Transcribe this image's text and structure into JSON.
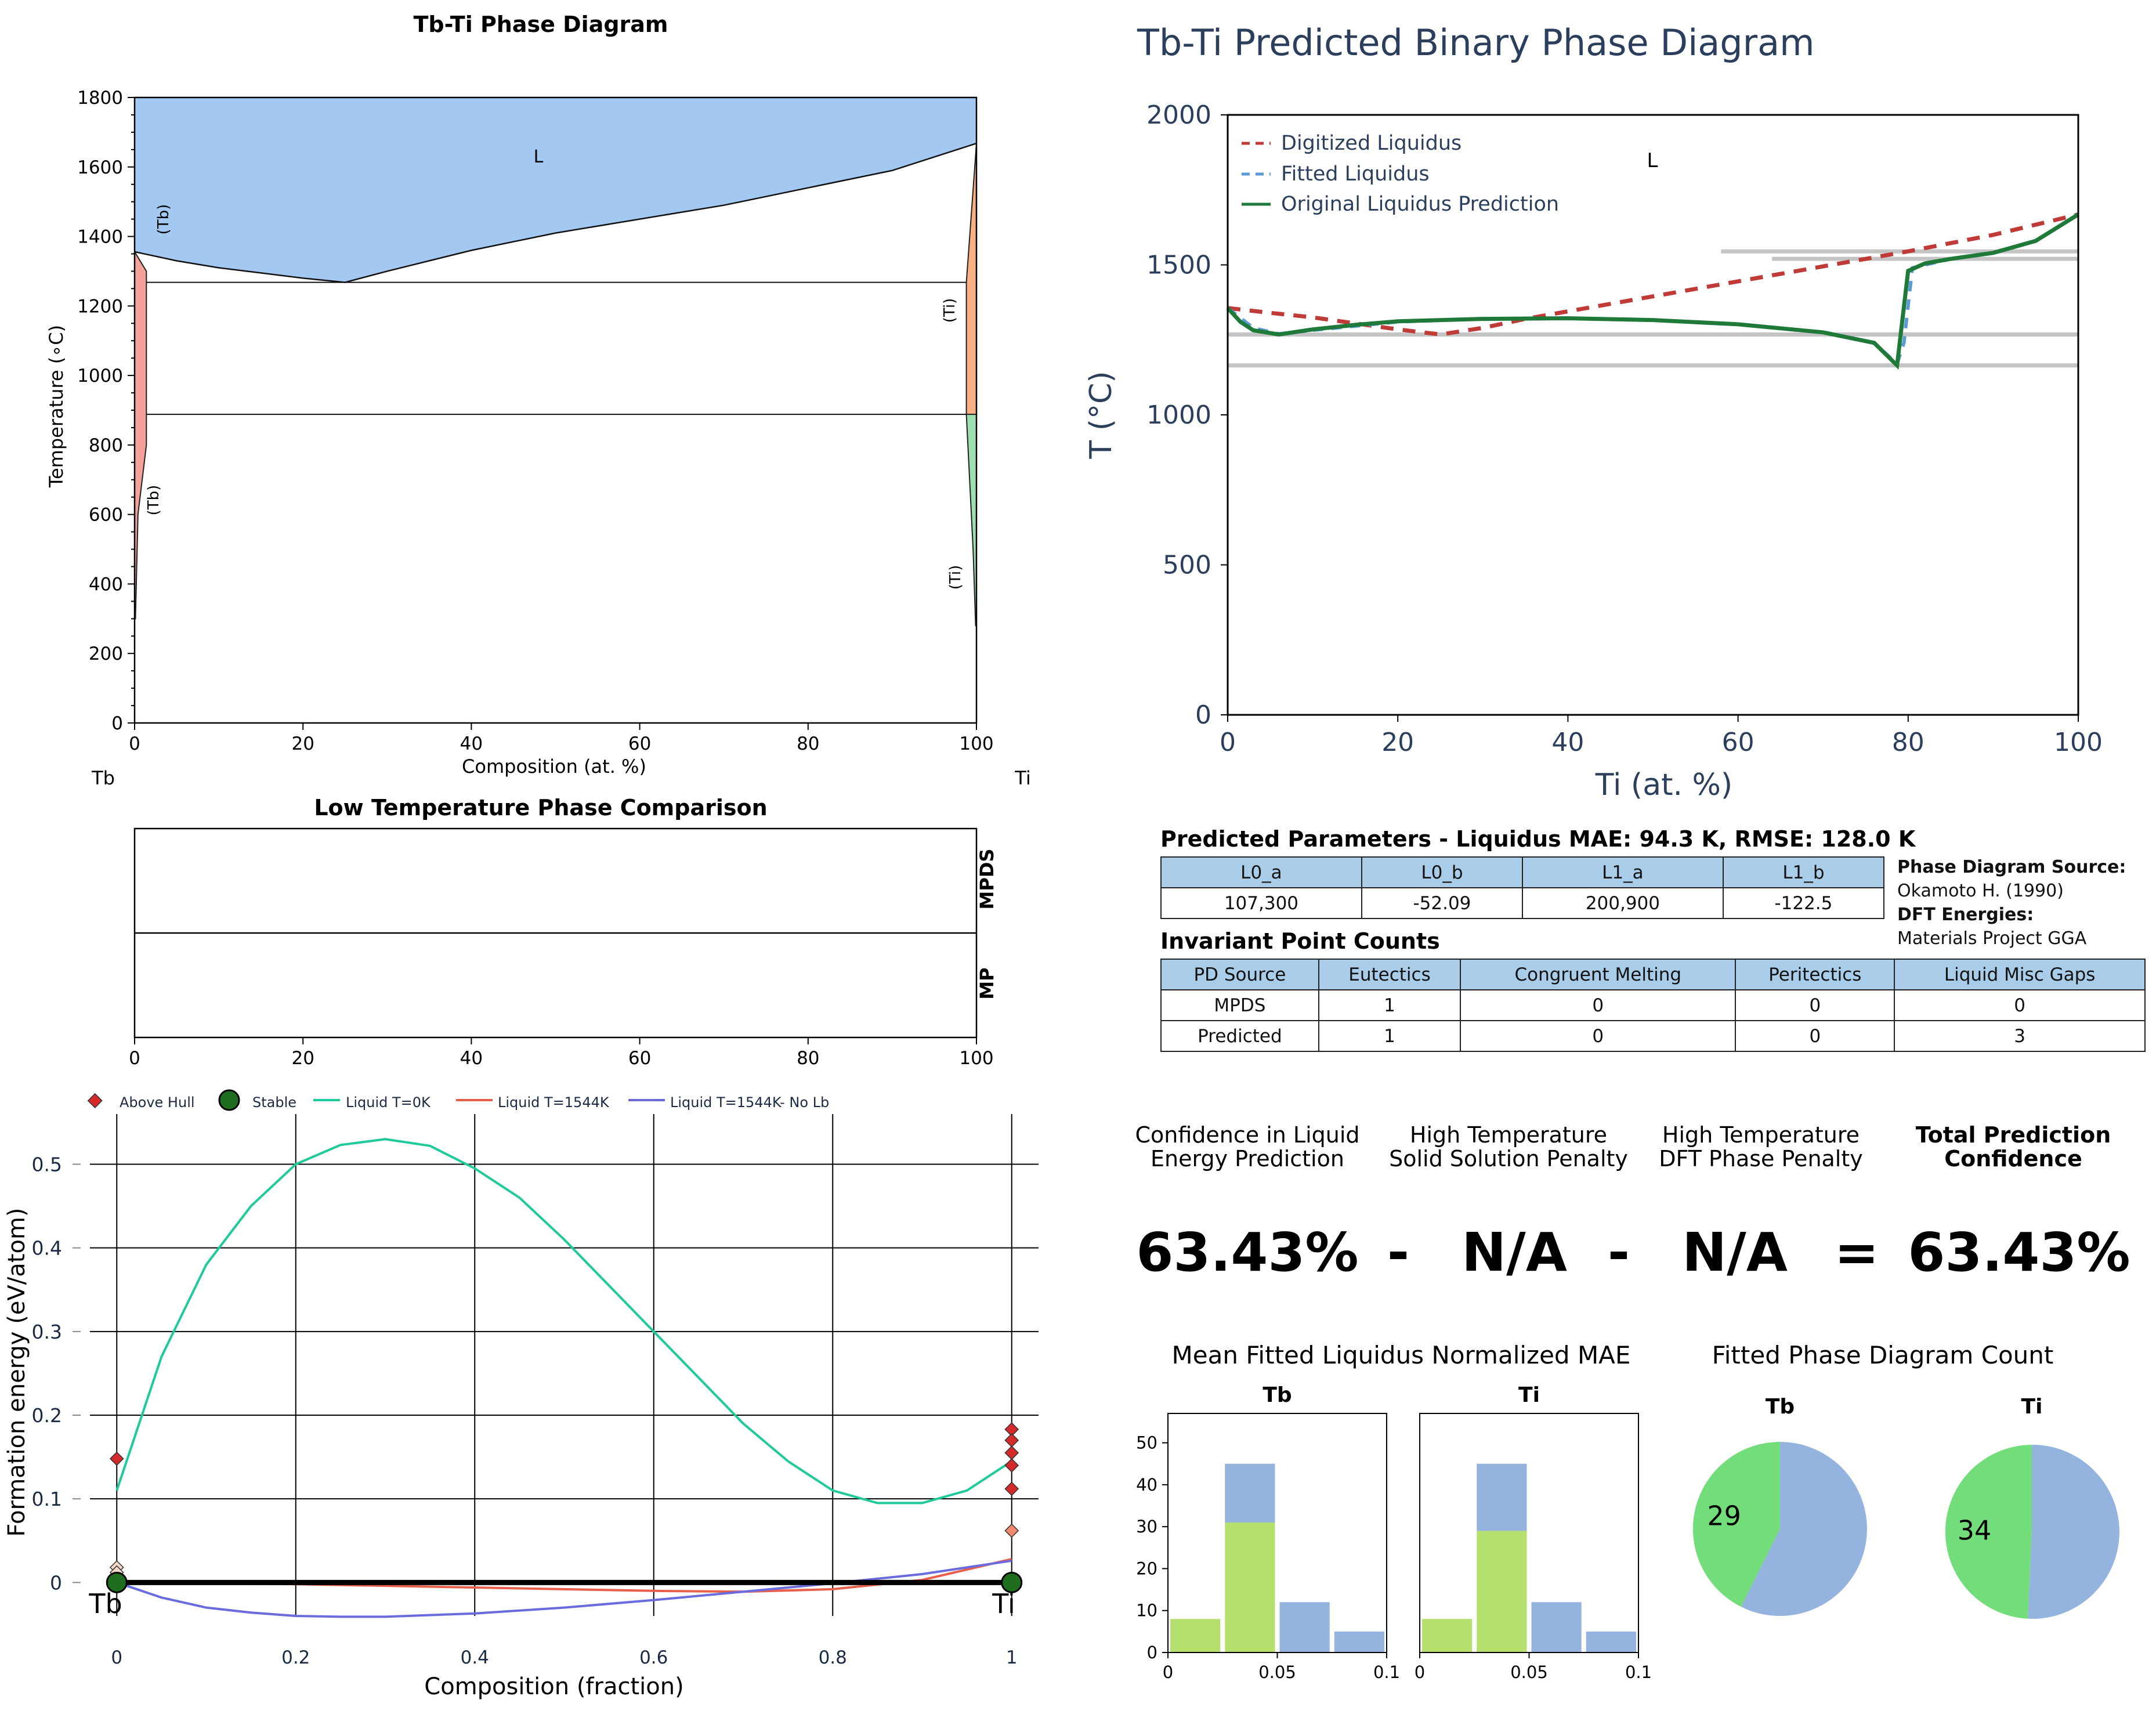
{
  "phase_panel": {
    "title": "Tb-Ti Phase Diagram",
    "xlabel": "Composition (at. %)",
    "ylabel": "Temperature (∘C)",
    "left_element": "Tb",
    "right_element": "Ti",
    "region_labels": [
      "L",
      "(Tb)",
      "(Tb)",
      "(Ti)",
      "(Ti)"
    ]
  },
  "low_temp_panel": {
    "title": "Low Temperature Phase Comparison",
    "rows": [
      "MPDS",
      "MP"
    ]
  },
  "formation_panel": {
    "xlabel": "Composition (fraction)",
    "ylabel": "Formation energy (eV/atom)",
    "left_element": "Tb",
    "right_element": "Ti",
    "legend": [
      "Above Hull",
      "Stable",
      "Liquid T=0K",
      "Liquid T=1544K",
      "Liquid T=1544K- No Lb"
    ]
  },
  "predicted_panel": {
    "title": "Tb-Ti Predicted Binary Phase Diagram",
    "xlabel": "Ti (at. %)",
    "ylabel": "T (°C)",
    "region_label": "L",
    "legend": [
      "Digitized Liquidus",
      "Fitted Liquidus",
      "Original Liquidus Prediction"
    ]
  },
  "params": {
    "title": "Predicted Parameters - Liquidus MAE: 94.3 K, RMSE: 128.0 K",
    "headers": [
      "L0_a",
      "L0_b",
      "L1_a",
      "L1_b"
    ],
    "values": [
      "107,300",
      "-52.09",
      "200,900",
      "-122.5"
    ]
  },
  "source": {
    "pd_label": "Phase Diagram Source:",
    "pd_value": "Okamoto H. (1990)",
    "dft_label": "DFT Energies:",
    "dft_value": "Materials Project GGA"
  },
  "invariants": {
    "title": "Invariant Point Counts",
    "headers": [
      "PD Source",
      "Eutectics",
      "Congruent Melting",
      "Peritectics",
      "Liquid Misc Gaps"
    ],
    "rows": [
      [
        "MPDS",
        "1",
        "0",
        "0",
        "0"
      ],
      [
        "Predicted",
        "1",
        "0",
        "0",
        "3"
      ]
    ]
  },
  "confidence": {
    "labels": [
      [
        "Confidence in Liquid",
        "Energy Prediction"
      ],
      [
        "High Temperature",
        "Solid Solution Penalty"
      ],
      [
        "High Temperature",
        "DFT Phase Penalty"
      ],
      [
        "Total Prediction",
        "Confidence"
      ]
    ],
    "values": [
      "63.43%",
      "-",
      "N/A",
      "-",
      "N/A",
      "=",
      "63.43%"
    ]
  },
  "mae_title": "Mean Fitted Liquidus Normalized MAE",
  "count_title": "Fitted Phase Diagram Count",
  "colors": {
    "liquid_blue": "#a3c9f2",
    "tb_solid": "#f4a09b",
    "ti_solid_hi": "#f7b183",
    "ti_solid_lo": "#9de0b0",
    "digitized": "#c03a37",
    "fitted": "#5b9bd5",
    "original": "#1f7a3a",
    "green_bar": "#b5e06e",
    "blue_bar": "#94b3de",
    "pie_green": "#72dd7a",
    "text_navy": "#2b3f5c"
  },
  "chart_data": [
    {
      "type": "area",
      "name_ref": "phase_panel",
      "xlim": [
        0,
        100
      ],
      "ylim": [
        0,
        1800
      ],
      "xticks": [
        0,
        20,
        40,
        60,
        80,
        100
      ],
      "yticks": [
        0,
        200,
        400,
        600,
        800,
        1000,
        1200,
        1400,
        1600,
        1800
      ],
      "liquidus": [
        [
          0,
          1356
        ],
        [
          5,
          1330
        ],
        [
          10,
          1310
        ],
        [
          15,
          1295
        ],
        [
          20,
          1280
        ],
        [
          25,
          1268
        ],
        [
          30,
          1300
        ],
        [
          40,
          1360
        ],
        [
          50,
          1410
        ],
        [
          60,
          1450
        ],
        [
          70,
          1490
        ],
        [
          80,
          1540
        ],
        [
          90,
          1590
        ],
        [
          100,
          1668
        ]
      ],
      "horizontal_lines": [
        1268,
        888
      ],
      "tb_solvus": [
        [
          0,
          1356
        ],
        [
          1.4,
          1300
        ],
        [
          1.4,
          800
        ],
        [
          0.4,
          600
        ],
        [
          0.1,
          300
        ]
      ],
      "ti_solvus": [
        [
          100,
          1668
        ],
        [
          98.8,
          1268
        ],
        [
          98.8,
          888
        ],
        [
          99.6,
          500
        ],
        [
          99.9,
          280
        ]
      ]
    },
    {
      "type": "table",
      "name_ref": "low_temp_panel",
      "xlim": [
        0,
        100
      ],
      "xticks": [
        0,
        20,
        40,
        60,
        80,
        100
      ]
    },
    {
      "type": "line",
      "name_ref": "formation_panel",
      "xlim": [
        -0.03,
        1.03
      ],
      "ylim": [
        -0.04,
        0.56
      ],
      "xticks": [
        0,
        0.2,
        0.4,
        0.6,
        0.8,
        1
      ],
      "xticklabels": [
        "0",
        "0.2",
        "0.4",
        "0.6",
        "0.8",
        "1"
      ],
      "yticks": [
        0,
        0.1,
        0.2,
        0.3,
        0.4,
        0.5
      ],
      "yticklabels": [
        "0",
        "0.1",
        "0.2",
        "0.3",
        "0.4",
        "0.5"
      ],
      "series": [
        {
          "name": "Liquid T=0K",
          "color": "#1ec99a",
          "x": [
            0,
            0.05,
            0.1,
            0.15,
            0.2,
            0.25,
            0.3,
            0.35,
            0.4,
            0.45,
            0.5,
            0.55,
            0.6,
            0.65,
            0.7,
            0.75,
            0.8,
            0.85,
            0.9,
            0.95,
            1
          ],
          "y": [
            0.11,
            0.27,
            0.38,
            0.45,
            0.5,
            0.523,
            0.53,
            0.522,
            0.495,
            0.46,
            0.41,
            0.355,
            0.3,
            0.245,
            0.19,
            0.145,
            0.11,
            0.095,
            0.095,
            0.11,
            0.145
          ]
        },
        {
          "name": "Liquid T=1544K",
          "color": "#e8604c",
          "x": [
            0,
            0.2,
            0.4,
            0.6,
            0.7,
            0.8,
            0.9,
            1
          ],
          "y": [
            0,
            -0.002,
            -0.006,
            -0.01,
            -0.011,
            -0.008,
            0.003,
            0.028
          ]
        },
        {
          "name": "Liquid T=1544K- No Lb",
          "color": "#6b6be0",
          "x": [
            0,
            0.05,
            0.1,
            0.15,
            0.2,
            0.25,
            0.3,
            0.4,
            0.5,
            0.6,
            0.7,
            0.8,
            0.9,
            1
          ],
          "y": [
            0,
            -0.018,
            -0.03,
            -0.036,
            -0.04,
            -0.041,
            -0.041,
            -0.037,
            -0.03,
            -0.021,
            -0.011,
            -0.001,
            0.01,
            0.026
          ]
        },
        {
          "name": "Above Hull",
          "type": "scatter",
          "color": "#d42a2a",
          "x": [
            0,
            0,
            0,
            1,
            1,
            1,
            1,
            1,
            1,
            1
          ],
          "y": [
            0.148,
            0.018,
            0.012,
            0.183,
            0.17,
            0.155,
            0.14,
            0.112,
            0.062,
            0.002
          ]
        },
        {
          "name": "Stable",
          "type": "scatter",
          "color": "#1f6e1f",
          "x": [
            0,
            1
          ],
          "y": [
            0,
            0
          ]
        }
      ]
    },
    {
      "type": "line",
      "name_ref": "predicted_panel",
      "xlim": [
        0,
        100
      ],
      "ylim": [
        0,
        2000
      ],
      "xticks": [
        0,
        20,
        40,
        60,
        80,
        100
      ],
      "yticks": [
        0,
        500,
        1000,
        1500,
        2000
      ],
      "gray_lines": [
        [
          0,
          100,
          1268
        ],
        [
          0,
          100,
          1165
        ],
        [
          58,
          100,
          1545
        ],
        [
          64,
          100,
          1520
        ]
      ],
      "series": [
        {
          "name": "Digitized Liquidus",
          "color": "#c03a37",
          "x": [
            0,
            5,
            10,
            15,
            20,
            25,
            30,
            35,
            40,
            50,
            60,
            70,
            80,
            90,
            100
          ],
          "y": [
            1356,
            1340,
            1325,
            1305,
            1285,
            1268,
            1290,
            1320,
            1345,
            1395,
            1445,
            1495,
            1545,
            1600,
            1668
          ]
        },
        {
          "name": "Fitted Liquidus",
          "color": "#5b9bd5",
          "x": [
            0,
            3,
            6,
            10,
            20,
            30,
            40,
            50,
            60,
            70,
            76,
            78.7,
            79.5,
            80.5,
            85,
            90,
            95,
            100
          ],
          "y": [
            1356,
            1290,
            1270,
            1282,
            1310,
            1320,
            1322,
            1316,
            1302,
            1275,
            1240,
            1170,
            1240,
            1490,
            1520,
            1540,
            1580,
            1668
          ]
        },
        {
          "name": "Original Liquidus Prediction",
          "color": "#1f7a3a",
          "x": [
            0,
            1.5,
            3,
            6,
            10,
            15,
            20,
            30,
            40,
            50,
            60,
            70,
            76,
            78.7,
            80,
            82,
            85,
            90,
            95,
            100
          ],
          "y": [
            1356,
            1310,
            1282,
            1268,
            1285,
            1300,
            1312,
            1320,
            1322,
            1316,
            1302,
            1275,
            1240,
            1165,
            1480,
            1505,
            1520,
            1540,
            1580,
            1668
          ]
        }
      ]
    },
    {
      "type": "bar",
      "title": "Tb",
      "xlim": [
        0,
        0.1
      ],
      "ylim": [
        0,
        57
      ],
      "xticks": [
        0,
        0.05,
        0.1
      ],
      "xticklabels": [
        "0",
        "0.05",
        "0.1"
      ],
      "yticks": [
        0,
        10,
        20,
        30,
        40,
        50
      ],
      "bins": [
        [
          0,
          0.025
        ],
        [
          0.025,
          0.05
        ],
        [
          0.05,
          0.075
        ],
        [
          0.075,
          0.1
        ]
      ],
      "series": [
        {
          "color": "#b5e06e",
          "values": [
            8,
            31,
            0,
            0
          ]
        },
        {
          "color": "#94b3de",
          "values": [
            0,
            14,
            12,
            5
          ]
        }
      ]
    },
    {
      "type": "bar",
      "title": "Ti",
      "xlim": [
        0,
        0.1
      ],
      "ylim": [
        0,
        57
      ],
      "xticks": [
        0,
        0.05,
        0.1
      ],
      "xticklabels": [
        "0",
        "0.05",
        "0.1"
      ],
      "yticks": [
        0,
        10,
        20,
        30,
        40,
        50
      ],
      "bins": [
        [
          0,
          0.025
        ],
        [
          0.025,
          0.05
        ],
        [
          0.05,
          0.075
        ],
        [
          0.075,
          0.1
        ]
      ],
      "series": [
        {
          "color": "#b5e06e",
          "values": [
            8,
            29,
            0,
            0
          ]
        },
        {
          "color": "#94b3de",
          "values": [
            0,
            16,
            12,
            5
          ]
        }
      ]
    },
    {
      "type": "pie",
      "title": "Tb",
      "slices": [
        {
          "value": 29,
          "color": "#72dd7a",
          "label": "29"
        },
        {
          "value": 39,
          "color": "#94b3de",
          "label": ""
        }
      ]
    },
    {
      "type": "pie",
      "title": "Ti",
      "slices": [
        {
          "value": 34,
          "color": "#72dd7a",
          "label": "34"
        },
        {
          "value": 35,
          "color": "#94b3de",
          "label": ""
        }
      ]
    }
  ]
}
